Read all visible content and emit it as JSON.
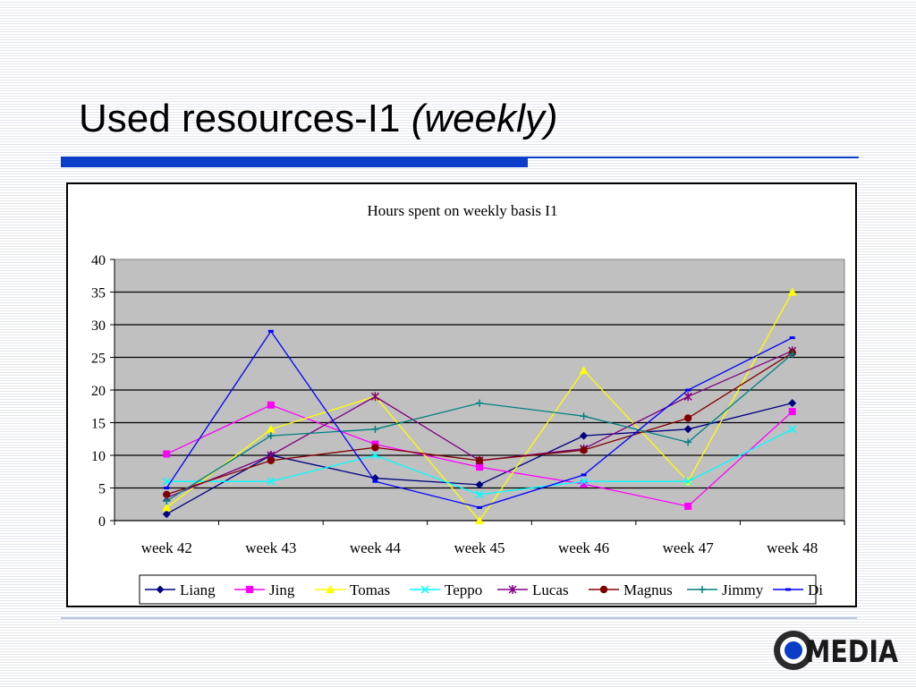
{
  "slide": {
    "title_main": "Used resources-I1 ",
    "title_italic": "(weekly)",
    "logo_text": "MEDIA",
    "accent_color": "#0a3ec8"
  },
  "chart_data": {
    "type": "line",
    "title": "Hours spent on weekly basis I1",
    "categories": [
      "week 42",
      "week 43",
      "week 44",
      "week 45",
      "week 46",
      "week 47",
      "week 48"
    ],
    "y_ticks": [
      "0",
      "5",
      "10",
      "15",
      "20",
      "25",
      "30",
      "35",
      "40"
    ],
    "ylim": [
      0,
      40
    ],
    "grid": true,
    "legend_position": "bottom",
    "plot_background": "#c0c0c0",
    "series": [
      {
        "name": "Liang",
        "color": "#000080",
        "marker": "diamond",
        "values": [
          1,
          10,
          6.5,
          5.5,
          13,
          14,
          18
        ]
      },
      {
        "name": "Jing",
        "color": "#ff00ff",
        "marker": "square",
        "values": [
          10.2,
          17.7,
          11.7,
          8.2,
          5.6,
          2.2,
          16.7
        ]
      },
      {
        "name": "Tomas",
        "color": "#ffff00",
        "marker": "triangle",
        "values": [
          2,
          14,
          19,
          0,
          23,
          6,
          35
        ]
      },
      {
        "name": "Teppo",
        "color": "#00ffff",
        "marker": "x",
        "values": [
          6,
          6,
          10,
          4,
          6,
          6,
          14
        ]
      },
      {
        "name": "Lucas",
        "color": "#800080",
        "marker": "star",
        "values": [
          3.5,
          10,
          19,
          9.2,
          11,
          19,
          26
        ]
      },
      {
        "name": "Magnus",
        "color": "#800000",
        "marker": "circle",
        "values": [
          4,
          9.2,
          11.2,
          9.2,
          10.8,
          15.7,
          25.7
        ]
      },
      {
        "name": "Jimmy",
        "color": "#008080",
        "marker": "plus",
        "values": [
          3,
          13,
          14,
          18,
          16,
          12,
          25.5
        ]
      },
      {
        "name": "Di",
        "color": "#0000ff",
        "marker": "dash",
        "values": [
          5,
          29,
          6,
          2,
          7,
          20,
          28
        ]
      }
    ]
  }
}
